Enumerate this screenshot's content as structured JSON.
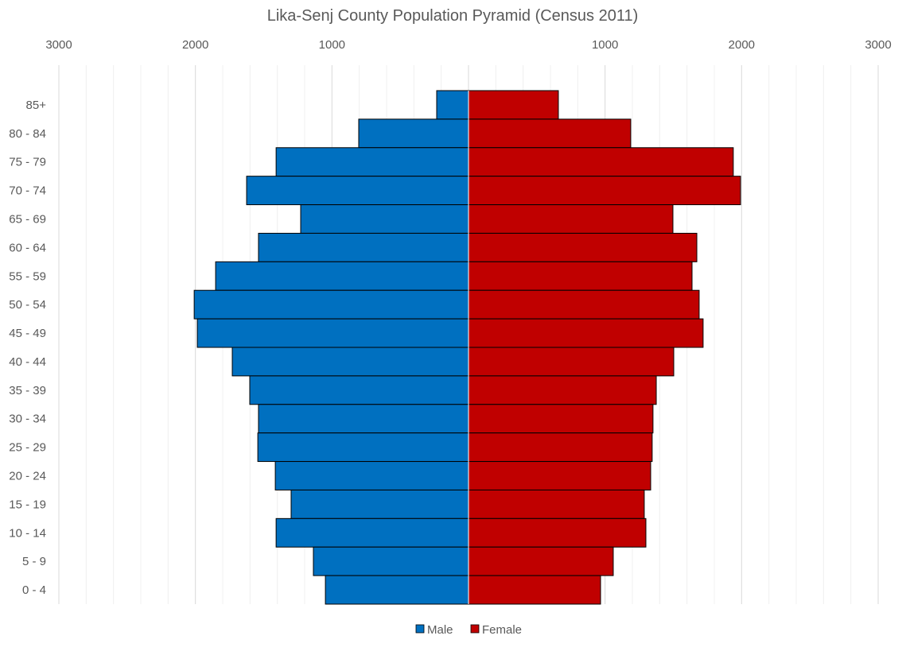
{
  "chart_data": {
    "type": "bar",
    "orientation": "horizontal-pyramid",
    "title": "Lika-Senj County Population Pyramid (Census 2011)",
    "xlabel": "",
    "ylabel": "",
    "xlim": [
      -3000,
      3000
    ],
    "x_ticks": [
      -3000,
      -2000,
      -1000,
      1000,
      2000,
      3000
    ],
    "x_tick_labels": [
      "3000",
      "2000",
      "1000",
      "1000",
      "2000",
      "3000"
    ],
    "grid": true,
    "legend_position": "bottom",
    "categories": [
      "85+",
      "80 - 84",
      "75 - 79",
      "70 - 74",
      "65 - 69",
      "60 - 64",
      "55 - 59",
      "50 - 54",
      "45 - 49",
      "40 - 44",
      "35 - 39",
      "30 - 34",
      "25 - 29",
      "20 - 24",
      "15 - 19",
      "10 - 14",
      "5 - 9",
      "0 - 4"
    ],
    "series": [
      {
        "name": "Male",
        "color": "#0070C0",
        "values": [
          233,
          804,
          1409,
          1625,
          1229,
          1538,
          1852,
          2009,
          1986,
          1730,
          1602,
          1538,
          1543,
          1415,
          1299,
          1409,
          1136,
          1048
        ]
      },
      {
        "name": "Female",
        "color": "#C00000",
        "values": [
          658,
          1188,
          1939,
          1992,
          1497,
          1672,
          1637,
          1689,
          1718,
          1503,
          1375,
          1351,
          1345,
          1334,
          1287,
          1299,
          1060,
          967
        ]
      }
    ]
  }
}
